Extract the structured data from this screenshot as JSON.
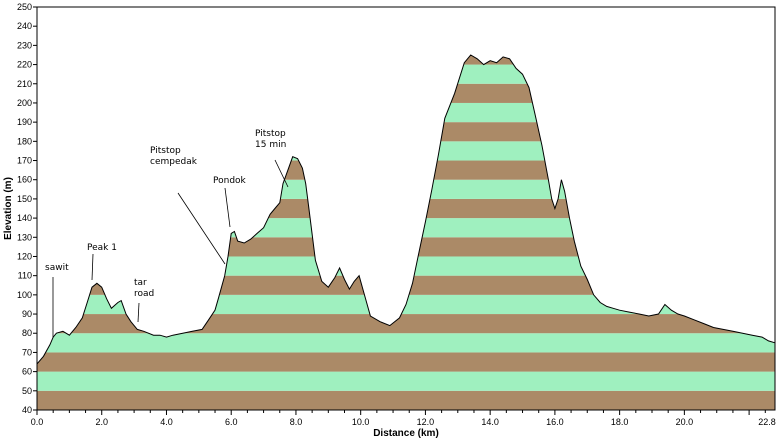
{
  "chart_data": {
    "type": "area",
    "title": "",
    "xlabel": "Distance  (km)",
    "ylabel": "Elevation (m)",
    "xlim": [
      0,
      22.8
    ],
    "ylim": [
      40,
      250
    ],
    "grid": false,
    "band_colors": [
      "#ab8a67",
      "#9ff0bf"
    ],
    "line_color": "#000000",
    "x_ticks": [
      {
        "v": 0,
        "label": "0.0"
      },
      {
        "v": 2,
        "label": "2.0"
      },
      {
        "v": 4,
        "label": "4.0"
      },
      {
        "v": 6,
        "label": "6.0"
      },
      {
        "v": 8,
        "label": "8.0"
      },
      {
        "v": 10,
        "label": "10.0"
      },
      {
        "v": 12,
        "label": "12.0"
      },
      {
        "v": 14,
        "label": "14.0"
      },
      {
        "v": 16,
        "label": "16.0"
      },
      {
        "v": 18,
        "label": "18.0"
      },
      {
        "v": 20,
        "label": "20.0"
      },
      {
        "v": 22.8,
        "label": "22.8"
      }
    ],
    "y_ticks": [
      {
        "v": 40,
        "label": "40"
      },
      {
        "v": 50,
        "label": "50"
      },
      {
        "v": 60,
        "label": "60"
      },
      {
        "v": 70,
        "label": "70"
      },
      {
        "v": 80,
        "label": "80"
      },
      {
        "v": 90,
        "label": "90"
      },
      {
        "v": 100,
        "label": "100"
      },
      {
        "v": 110,
        "label": "110"
      },
      {
        "v": 120,
        "label": "120"
      },
      {
        "v": 130,
        "label": "130"
      },
      {
        "v": 140,
        "label": "140"
      },
      {
        "v": 150,
        "label": "150"
      },
      {
        "v": 160,
        "label": "160"
      },
      {
        "v": 170,
        "label": "170"
      },
      {
        "v": 180,
        "label": "180"
      },
      {
        "v": 190,
        "label": "190"
      },
      {
        "v": 200,
        "label": "200"
      },
      {
        "v": 210,
        "label": "210"
      },
      {
        "v": 220,
        "label": "220"
      },
      {
        "v": 230,
        "label": "230"
      },
      {
        "v": 240,
        "label": "240"
      },
      {
        "v": 250,
        "label": "250"
      }
    ],
    "x": [
      0,
      0.2,
      0.4,
      0.5,
      0.6,
      0.8,
      1.0,
      1.2,
      1.4,
      1.55,
      1.7,
      1.85,
      2.0,
      2.15,
      2.3,
      2.5,
      2.6,
      2.75,
      2.9,
      3.1,
      3.3,
      3.6,
      3.8,
      4.0,
      4.2,
      4.5,
      4.8,
      5.1,
      5.3,
      5.5,
      5.6,
      5.8,
      5.9,
      6.0,
      6.1,
      6.2,
      6.4,
      6.6,
      6.8,
      7.0,
      7.2,
      7.35,
      7.5,
      7.6,
      7.75,
      7.9,
      8.05,
      8.2,
      8.3,
      8.4,
      8.6,
      8.8,
      9.0,
      9.2,
      9.35,
      9.5,
      9.65,
      9.8,
      9.95,
      10.1,
      10.3,
      10.6,
      10.9,
      11.2,
      11.4,
      11.6,
      11.8,
      12.0,
      12.2,
      12.4,
      12.6,
      12.9,
      13.2,
      13.4,
      13.6,
      13.8,
      14.0,
      14.2,
      14.4,
      14.6,
      14.8,
      15.0,
      15.2,
      15.4,
      15.6,
      15.8,
      15.9,
      16.0,
      16.1,
      16.2,
      16.3,
      16.45,
      16.6,
      16.8,
      17.0,
      17.2,
      17.4,
      17.6,
      17.8,
      18.0,
      18.3,
      18.6,
      18.9,
      19.2,
      19.4,
      19.6,
      19.8,
      20.0,
      20.3,
      20.6,
      20.9,
      21.2,
      21.5,
      21.8,
      22.1,
      22.4,
      22.6,
      22.8
    ],
    "y": [
      64,
      68,
      74,
      78,
      80,
      81,
      79,
      83,
      88,
      96,
      104,
      106,
      104,
      98,
      93,
      96,
      97,
      90,
      86,
      82,
      81,
      79,
      79,
      78,
      79,
      80,
      81,
      82,
      87,
      92,
      98,
      110,
      120,
      132,
      133,
      128,
      127,
      129,
      132,
      135,
      142,
      145,
      148,
      158,
      165,
      172,
      171,
      166,
      158,
      145,
      118,
      107,
      104,
      109,
      114,
      108,
      103,
      107,
      110,
      101,
      89,
      86,
      84,
      88,
      95,
      106,
      122,
      138,
      155,
      173,
      192,
      205,
      221,
      225,
      223,
      220,
      222,
      221,
      224,
      223,
      218,
      215,
      208,
      193,
      178,
      160,
      150,
      145,
      150,
      160,
      154,
      140,
      128,
      115,
      108,
      100,
      96,
      94,
      93,
      92,
      91,
      90,
      89,
      90,
      95,
      92,
      90,
      89,
      87,
      85,
      83,
      82,
      81,
      80,
      79,
      78,
      76,
      75
    ],
    "annotations": [
      {
        "lines": [
          "sawit"
        ],
        "x": 0.5,
        "y": 80
      },
      {
        "lines": [
          "Peak 1"
        ],
        "x": 1.7,
        "y": 106
      },
      {
        "lines": [
          "tar",
          "road"
        ],
        "x": 3.1,
        "y": 82
      },
      {
        "lines": [
          "Pitstop",
          "cempedak"
        ],
        "x": 5.8,
        "y": 114
      },
      {
        "lines": [
          "Pondok"
        ],
        "x": 5.95,
        "y": 133
      },
      {
        "lines": [
          "Pitstop",
          "15 min"
        ],
        "x": 7.75,
        "y": 163
      }
    ]
  }
}
